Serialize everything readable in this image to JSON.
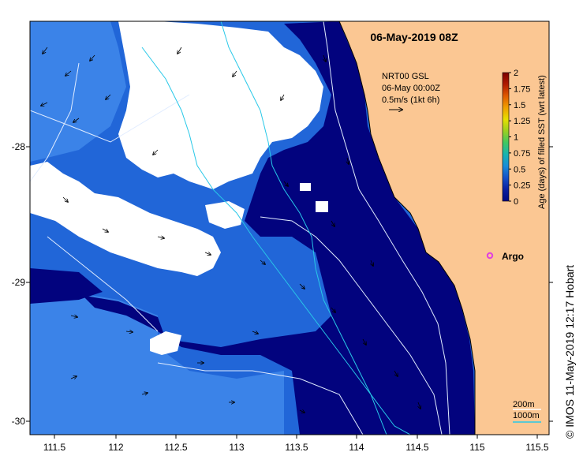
{
  "title": "06-May-2019 08Z",
  "current_info": {
    "line1": "NRT00 GSL",
    "line2": "06-May 00:00Z",
    "line3": "0.5m/s (1kt 6h)"
  },
  "colorbar": {
    "label": "Age (days) of filled SST (wrt latest)",
    "ticks": [
      "2",
      "1.75",
      "1.5",
      "1.25",
      "1",
      "0.75",
      "0.5",
      "0.25",
      "0"
    ],
    "colors": [
      "#7a0000",
      "#b01a00",
      "#e05a00",
      "#f0a000",
      "#e6e000",
      "#9ad020",
      "#40c860",
      "#18b4b0",
      "#1a8cd8",
      "#1550c8",
      "#0a1fa0",
      "#000a80"
    ]
  },
  "argo": {
    "label": "Argo",
    "color": "#e040e0"
  },
  "depth_legend": {
    "shallow": "200m",
    "deep": "1000m"
  },
  "x_ticks": [
    "111.5",
    "112",
    "112.5",
    "113",
    "113.5",
    "114",
    "114.5",
    "115",
    "115.5"
  ],
  "y_ticks": [
    "-28",
    "-29",
    "-30"
  ],
  "credit": "© IMOS 11-May-2019 12:17 Hobart",
  "colors": {
    "land": "#fbc793",
    "sst_age_recent": "#02037e",
    "sst_age_older": "#2166d8",
    "sst_age_oldest": "#3b83e8",
    "no_data": "#ffffff",
    "isobath": "#e0ecff",
    "current_track": "#28c8e8"
  }
}
